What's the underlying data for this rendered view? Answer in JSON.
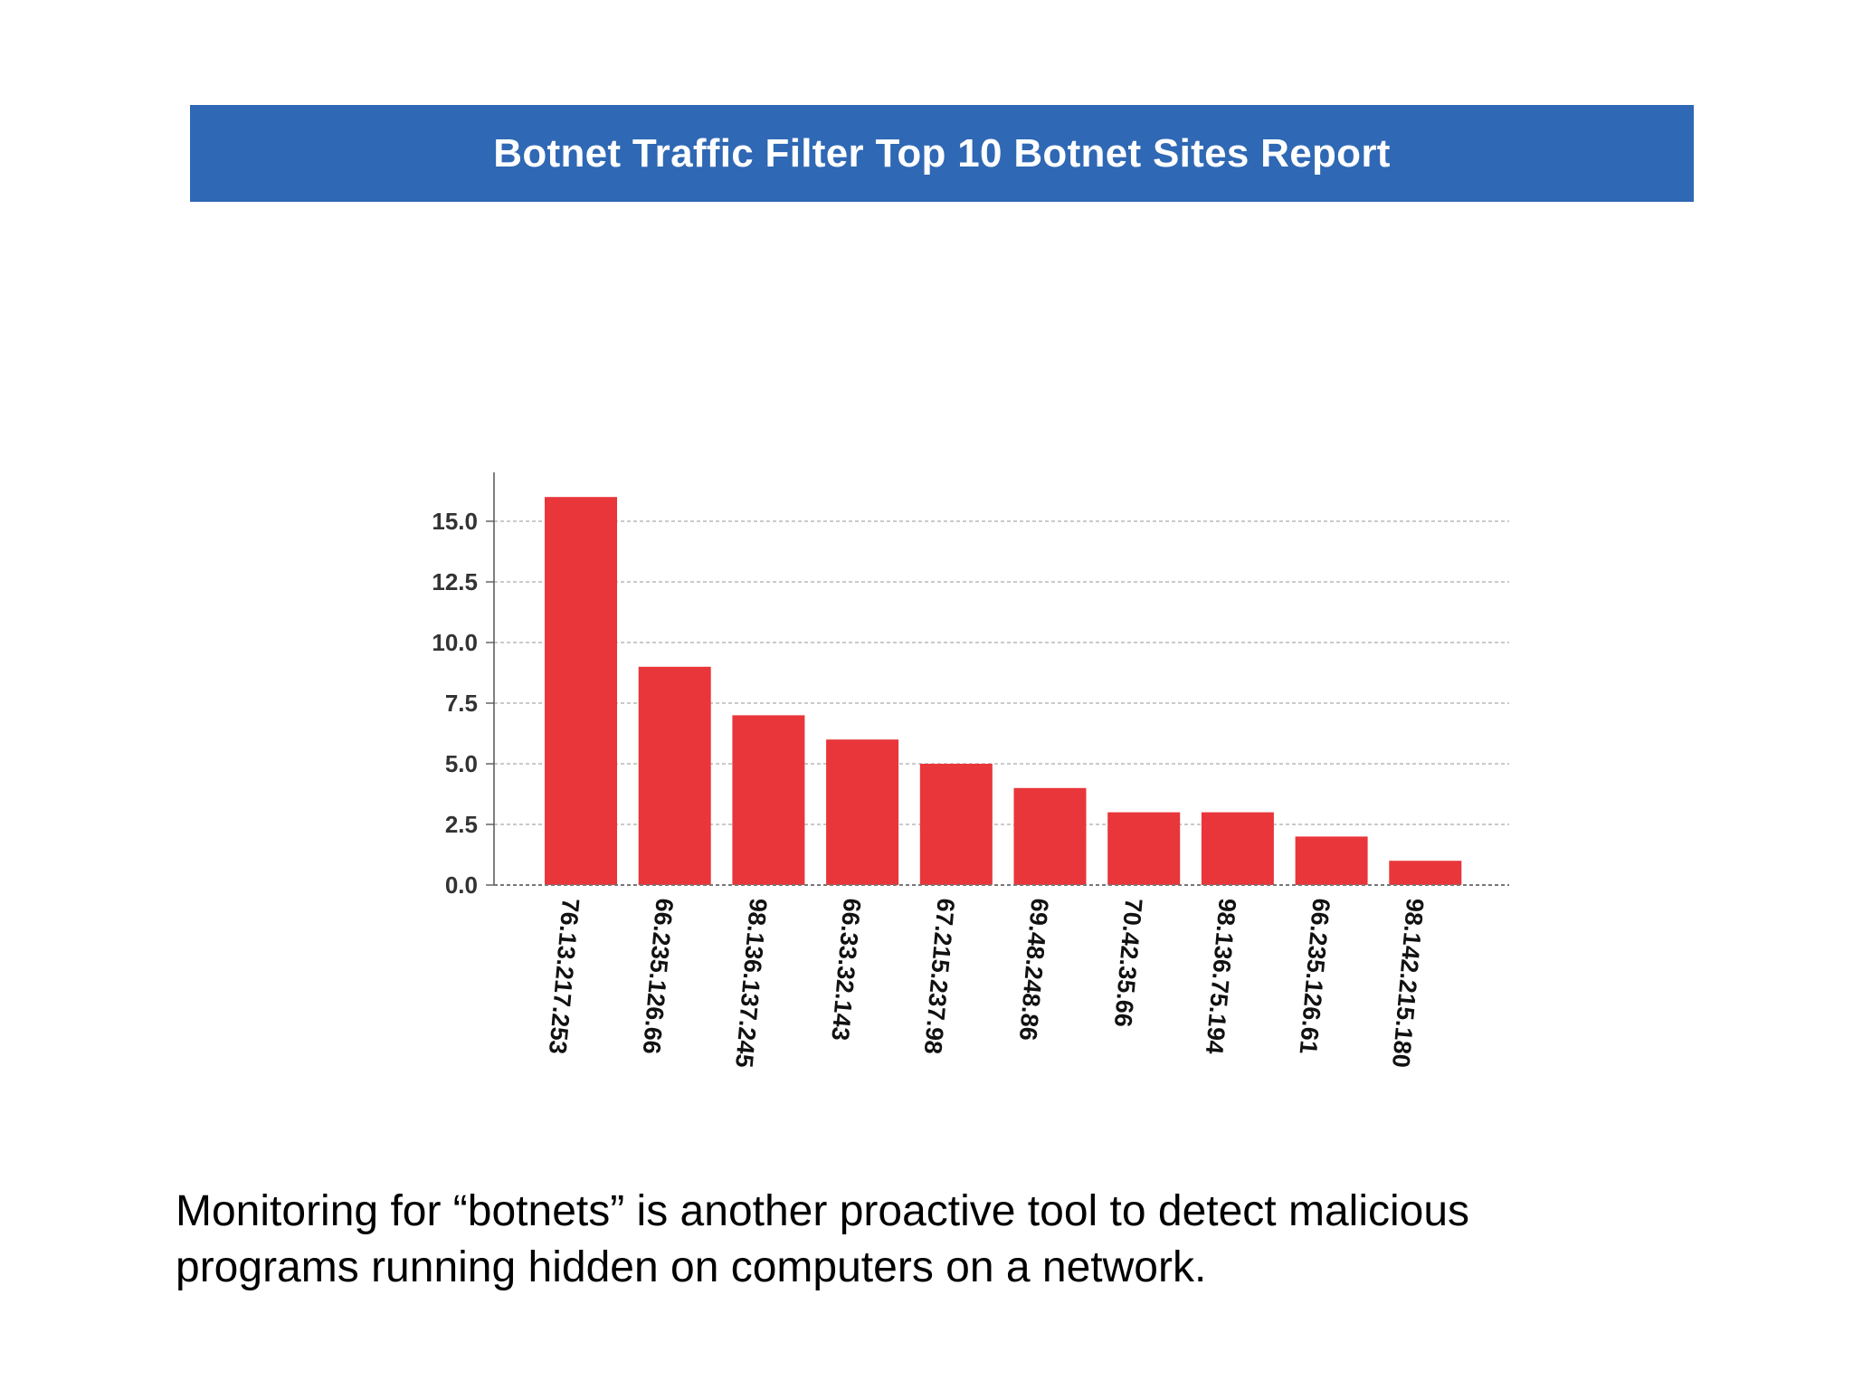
{
  "chart_data": {
    "type": "bar",
    "title": "Botnet Traffic Filter Top 10 Botnet Sites Report",
    "xlabel": "",
    "ylabel": "",
    "categories": [
      "76.13.217.253",
      "66.235.126.66",
      "98.136.137.245",
      "66.33.32.143",
      "67.215.237.98",
      "69.48.248.86",
      "70.42.35.66",
      "98.136.75.194",
      "66.235.126.61",
      "98.142.215.180"
    ],
    "values": [
      16,
      9,
      7,
      6,
      5,
      4,
      3,
      3,
      2,
      1
    ],
    "yticks": [
      "0.0",
      "2.5",
      "5.0",
      "7.5",
      "10.0",
      "12.5",
      "15.0"
    ],
    "ylim": [
      0,
      16
    ],
    "grid": true,
    "legend": "none",
    "colors": {
      "bar": "#e8363a",
      "banner": "#2f68b4",
      "grid": "#b8b8b8"
    }
  },
  "caption": {
    "line1": "Monitoring for “botnets” is another proactive tool to detect malicious",
    "line2": "programs running hidden on computers on a network."
  }
}
